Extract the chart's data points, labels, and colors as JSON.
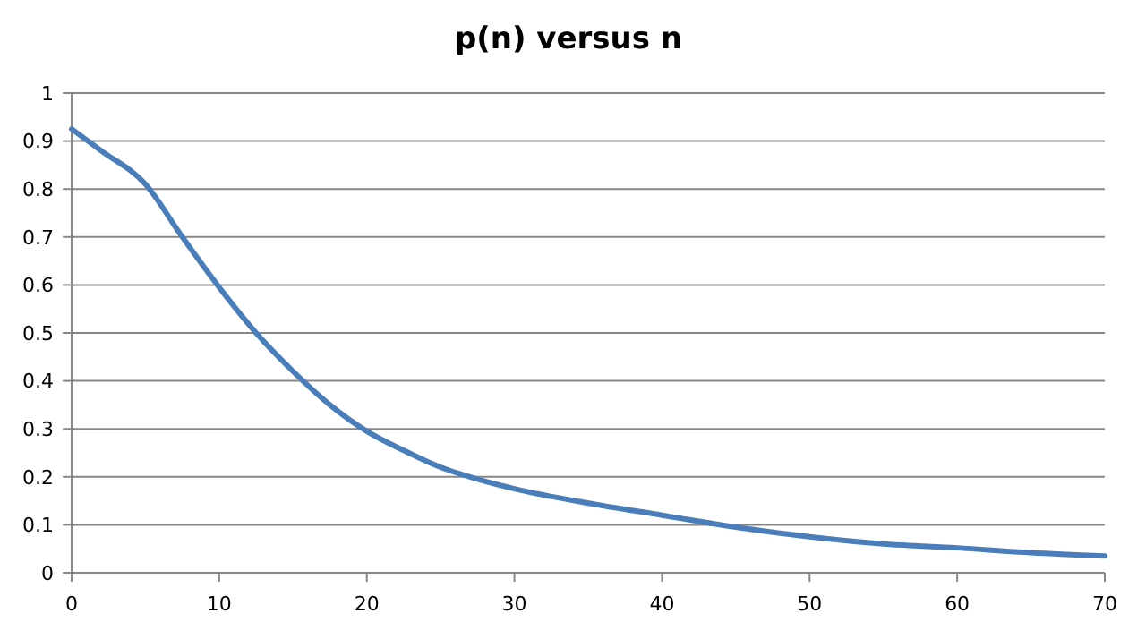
{
  "chart_data": {
    "type": "line",
    "title": "p(n) versus n",
    "x": [
      0,
      2,
      5,
      7.5,
      10,
      12.5,
      15,
      17.5,
      20,
      22.5,
      25,
      27.5,
      30,
      35,
      40,
      45,
      50,
      55,
      60,
      65,
      70
    ],
    "series": [
      {
        "color": "#4a7ebb",
        "values": [
          0.925,
          0.88,
          0.81,
          0.7,
          0.595,
          0.5,
          0.42,
          0.35,
          0.295,
          0.255,
          0.22,
          0.195,
          0.175,
          0.145,
          0.12,
          0.095,
          0.075,
          0.06,
          0.052,
          0.042,
          0.035
        ]
      }
    ],
    "xlim": [
      0,
      70
    ],
    "xticks": [
      0,
      10,
      20,
      30,
      40,
      50,
      60,
      70
    ],
    "ylim": [
      0,
      1
    ],
    "yticks": [
      0,
      0.1,
      0.2,
      0.3,
      0.4,
      0.5,
      0.6,
      0.7,
      0.8,
      0.9,
      1
    ],
    "grid": "y",
    "marker": "none",
    "line_style": "solid"
  }
}
